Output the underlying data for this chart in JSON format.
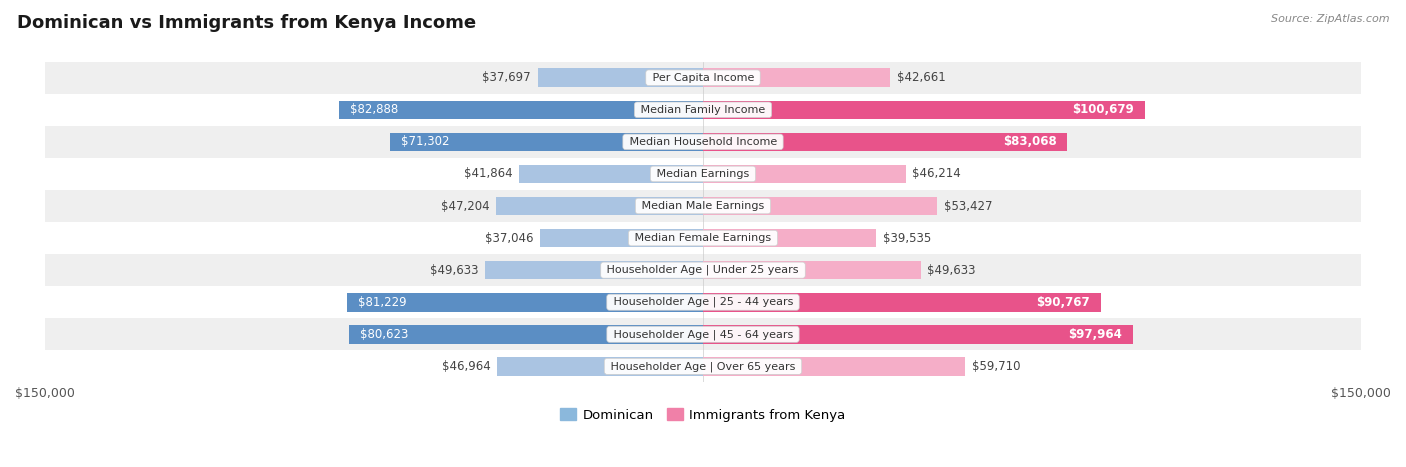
{
  "title": "Dominican vs Immigrants from Kenya Income",
  "source": "Source: ZipAtlas.com",
  "categories": [
    "Per Capita Income",
    "Median Family Income",
    "Median Household Income",
    "Median Earnings",
    "Median Male Earnings",
    "Median Female Earnings",
    "Householder Age | Under 25 years",
    "Householder Age | 25 - 44 years",
    "Householder Age | 45 - 64 years",
    "Householder Age | Over 65 years"
  ],
  "dominican": [
    37697,
    82888,
    71302,
    41864,
    47204,
    37046,
    49633,
    81229,
    80623,
    46964
  ],
  "kenya": [
    42661,
    100679,
    83068,
    46214,
    53427,
    39535,
    49633,
    90767,
    97964,
    59710
  ],
  "max_val": 150000,
  "color_dominican_light": "#aac4e2",
  "color_dominican_dark": "#5b8ec4",
  "color_kenya_light": "#f5aec8",
  "color_kenya_dark": "#e8538a",
  "bg_row_light": "#efefef",
  "bg_row_white": "#ffffff",
  "label_color_dark": "#444444",
  "label_color_white": "#ffffff",
  "legend_dominican_color": "#8bb8dc",
  "legend_kenya_color": "#f080a8",
  "bar_height": 0.58,
  "figsize": [
    14.06,
    4.67
  ],
  "dpi": 100,
  "title_fontsize": 13,
  "value_fontsize": 8.5,
  "cat_fontsize": 8.0
}
